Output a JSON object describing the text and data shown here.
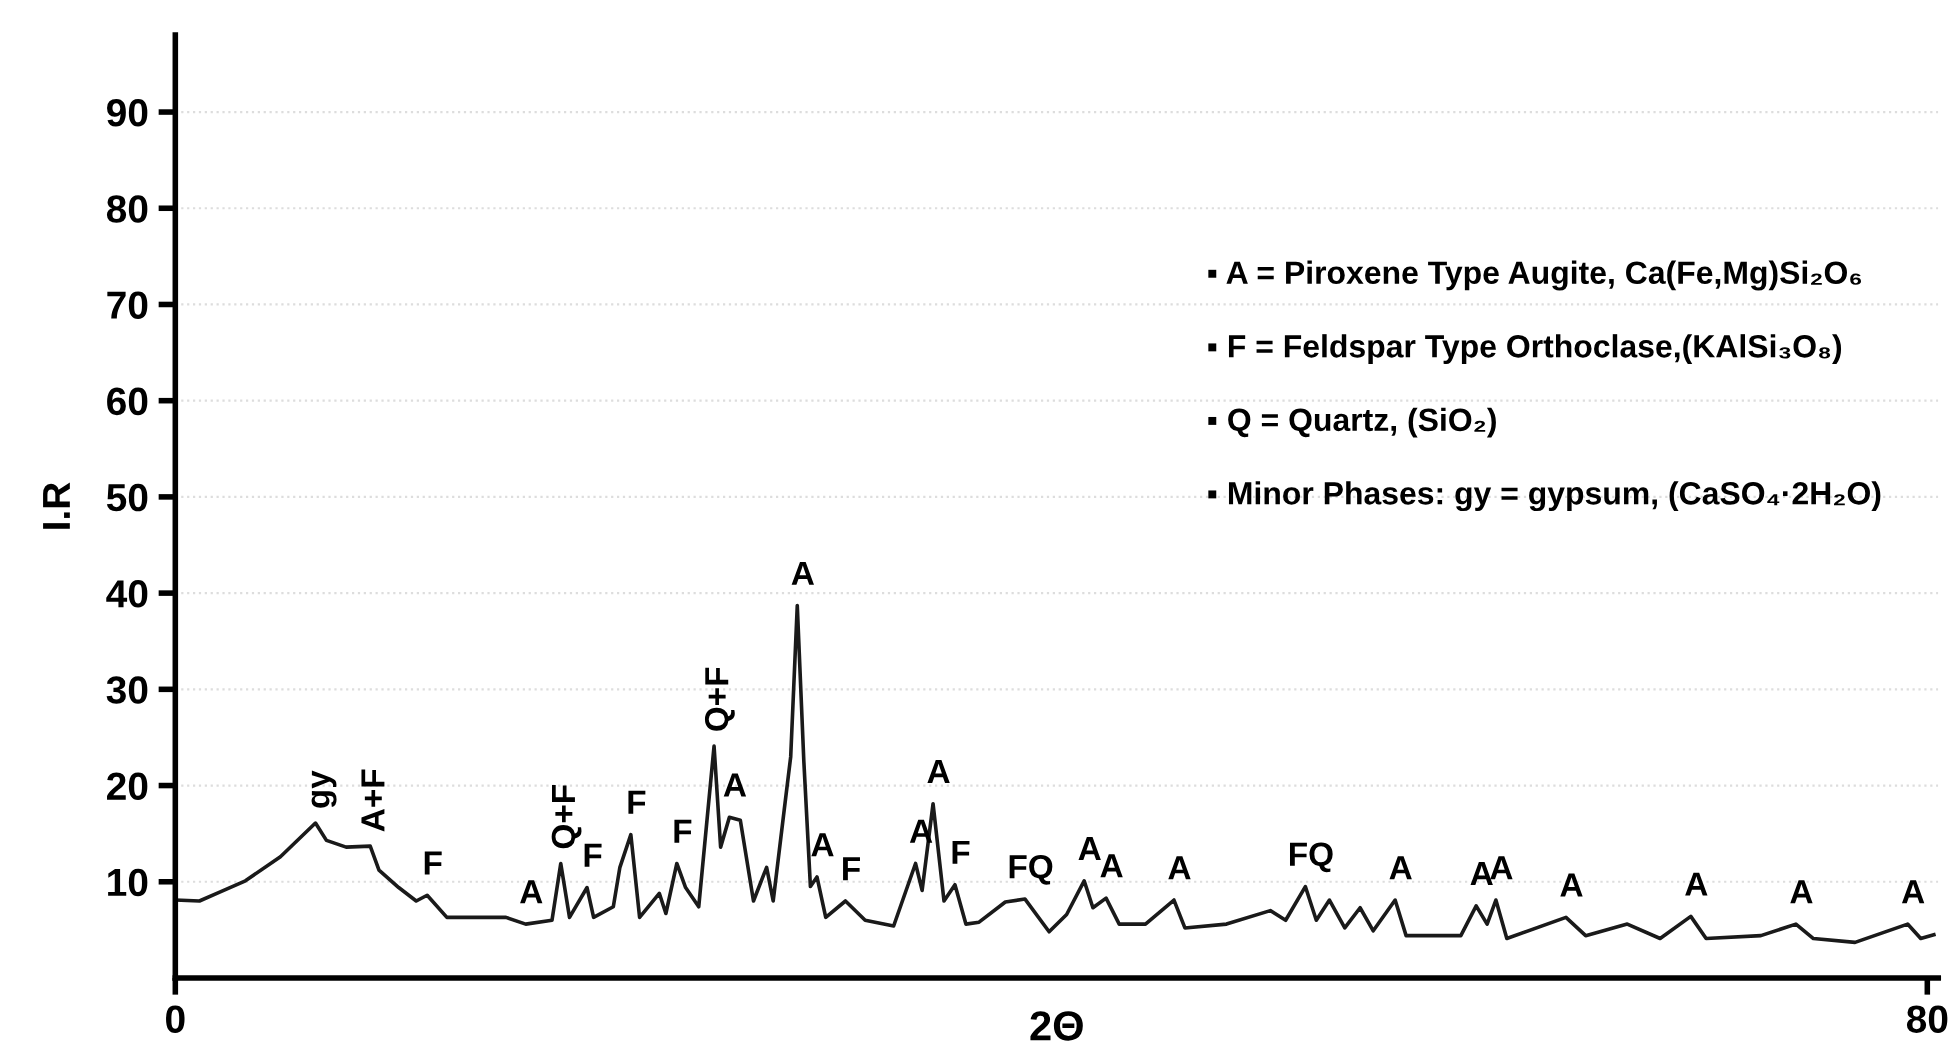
{
  "chart_data": {
    "type": "line",
    "xlabel": "2Θ",
    "ylabel": "I.R",
    "xlim": [
      0,
      80.5
    ],
    "xticks": [
      0,
      80
    ],
    "ylim": [
      0,
      98
    ],
    "yticks": [
      10,
      20,
      30,
      40,
      50,
      60,
      70,
      80,
      90
    ],
    "grid": "y",
    "marker": "none",
    "line_style": "solid",
    "series": [
      {
        "color": "#1a1a1a",
        "x": [
          0,
          1.1,
          2.0,
          3.2,
          4.8,
          6.4,
          6.9,
          7.8,
          8.9,
          9.3,
          10.2,
          11.0,
          11.5,
          12.4,
          15.1,
          16.0,
          17.2,
          17.6,
          18.0,
          18.8,
          19.1,
          20.0,
          20.3,
          20.8,
          21.2,
          22.1,
          22.4,
          22.9,
          23.3,
          23.9,
          24.6,
          24.9,
          25.3,
          25.8,
          26.4,
          27.0,
          27.3,
          27.8,
          28.1,
          28.4,
          28.7,
          29.0,
          29.3,
          29.7,
          30.6,
          31.5,
          32.8,
          33.8,
          34.1,
          34.6,
          35.1,
          35.6,
          36.1,
          36.7,
          37.9,
          38.8,
          39.9,
          40.7,
          41.5,
          41.9,
          42.5,
          43.1,
          44.3,
          45.6,
          46.1,
          48.0,
          50.0,
          50.7,
          51.6,
          52.1,
          52.7,
          53.4,
          54.1,
          54.7,
          55.7,
          56.2,
          58.7,
          59.4,
          59.9,
          60.3,
          60.8,
          63.5,
          64.4,
          66.3,
          67.8,
          69.2,
          69.9,
          72.4,
          74.0,
          74.8,
          76.7,
          79.1,
          79.7,
          80.3
        ],
        "values": [
          8.1,
          8.0,
          8.9,
          10.1,
          12.6,
          16.1,
          14.3,
          13.6,
          13.7,
          11.2,
          9.4,
          8.0,
          8.6,
          6.3,
          6.3,
          5.6,
          6.0,
          11.9,
          6.3,
          9.4,
          6.3,
          7.4,
          11.5,
          14.9,
          6.3,
          8.8,
          6.7,
          11.9,
          9.4,
          7.4,
          24.1,
          13.6,
          16.7,
          16.4,
          8.0,
          11.5,
          8.0,
          17.4,
          23.0,
          38.7,
          22.5,
          9.5,
          10.5,
          6.3,
          8.0,
          6.0,
          5.4,
          11.9,
          9.1,
          18.1,
          8.0,
          9.7,
          5.6,
          5.8,
          7.9,
          8.2,
          4.8,
          6.6,
          10.1,
          7.3,
          8.3,
          5.6,
          5.6,
          8.1,
          5.2,
          5.6,
          7.0,
          6.0,
          9.5,
          6.0,
          8.1,
          5.2,
          7.3,
          4.9,
          8.1,
          4.4,
          4.4,
          7.5,
          5.6,
          8.1,
          4.1,
          6.3,
          4.4,
          5.6,
          4.1,
          6.4,
          4.1,
          4.4,
          5.6,
          4.1,
          3.7,
          5.6,
          4.1,
          4.5
        ]
      }
    ],
    "annotations": [
      "▪ A = Piroxene Type Augite, Ca(Fe,Mg)Si₂O₆",
      "▪ F = Feldspar Type Orthoclase,(KAlSi₃O₈)",
      "▪ Q = Quartz, (SiO₂)",
      "▪ Minor Phases: gy = gypsum, (CaSO₄·2H₂O)",
      {
        "text": "gy",
        "x": 6.4,
        "y": 16.1
      },
      {
        "text": "A+F",
        "x": 8.9,
        "y": 13.7
      },
      {
        "text": "F",
        "x": 11.5,
        "y": 8.6
      },
      {
        "text": "A",
        "x": 16.0,
        "y": 5.6
      },
      {
        "text": "Q+F",
        "x": 17.6,
        "y": 11.9
      },
      {
        "text": "F",
        "x": 18.8,
        "y": 9.4
      },
      {
        "text": "F",
        "x": 20.8,
        "y": 14.9
      },
      {
        "text": "F",
        "x": 22.9,
        "y": 11.9
      },
      {
        "text": "Q+F",
        "x": 24.6,
        "y": 24.1
      },
      {
        "text": "A",
        "x": 25.3,
        "y": 16.7
      },
      {
        "text": "A",
        "x": 28.4,
        "y": 38.7
      },
      {
        "text": "A",
        "x": 29.3,
        "y": 10.5
      },
      {
        "text": "F",
        "x": 30.6,
        "y": 8.0
      },
      {
        "text": "A",
        "x": 33.8,
        "y": 11.9
      },
      {
        "text": "A",
        "x": 34.6,
        "y": 18.1
      },
      {
        "text": "F",
        "x": 35.6,
        "y": 9.7
      },
      {
        "text": "FQ",
        "x": 38.8,
        "y": 8.2
      },
      {
        "text": "A",
        "x": 41.5,
        "y": 10.1
      },
      {
        "text": "A",
        "x": 42.5,
        "y": 8.3
      },
      {
        "text": "A",
        "x": 45.6,
        "y": 8.1
      },
      {
        "text": "FQ",
        "x": 51.6,
        "y": 9.5
      },
      {
        "text": "A",
        "x": 55.7,
        "y": 8.1
      },
      {
        "text": "A",
        "x": 59.4,
        "y": 7.5
      },
      {
        "text": "A",
        "x": 60.3,
        "y": 8.1
      },
      {
        "text": "A",
        "x": 63.5,
        "y": 6.3
      },
      {
        "text": "A",
        "x": 69.2,
        "y": 6.4
      },
      {
        "text": "A",
        "x": 74.0,
        "y": 5.6
      },
      {
        "text": "A",
        "x": 79.1,
        "y": 5.6
      }
    ]
  }
}
